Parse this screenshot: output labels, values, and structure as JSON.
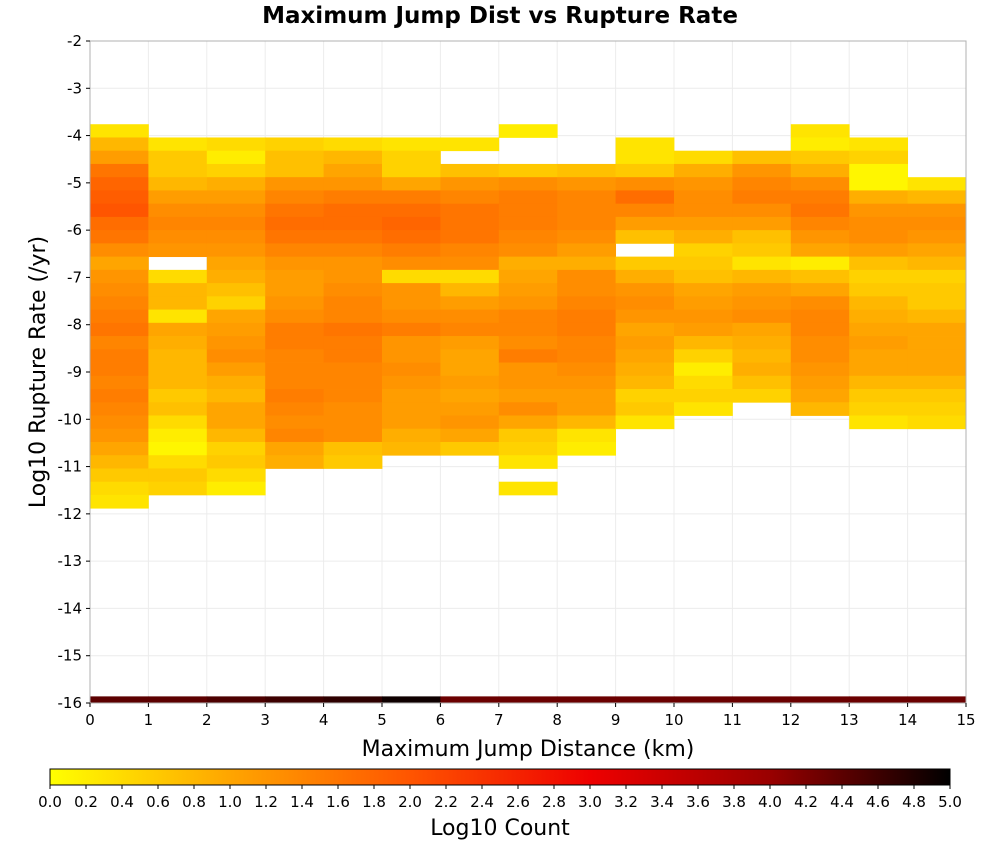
{
  "chart_data": {
    "type": "heatmap",
    "title": "Maximum Jump Dist vs Rupture Rate",
    "xlabel": "Maximum Jump Distance (km)",
    "ylabel": "Log10 Rupture Rate (/yr)",
    "colorbar_label": "Log10 Count",
    "xlim": [
      0,
      15
    ],
    "ylim": [
      -16,
      -2
    ],
    "x_ticks": [
      "0",
      "1",
      "2",
      "3",
      "4",
      "5",
      "6",
      "7",
      "8",
      "9",
      "10",
      "11",
      "12",
      "13",
      "14",
      "15"
    ],
    "y_ticks": [
      "-2",
      "-3",
      "-4",
      "-5",
      "-6",
      "-7",
      "-8",
      "-9",
      "-10",
      "-11",
      "-12",
      "-13",
      "-14",
      "-15",
      "-16"
    ],
    "color_range": [
      0,
      5
    ],
    "colorbar_ticks": [
      "0.0",
      "0.2",
      "0.4",
      "0.6",
      "0.8",
      "1.0",
      "1.2",
      "1.4",
      "1.6",
      "1.8",
      "2.0",
      "2.2",
      "2.4",
      "2.6",
      "2.8",
      "3.0",
      "3.2",
      "3.4",
      "3.6",
      "3.8",
      "4.0",
      "4.2",
      "4.4",
      "4.6",
      "4.8",
      "5.0"
    ],
    "colormap": [
      "#ffff00",
      "#ffa500",
      "#ff5500",
      "#ee0000",
      "#990000",
      "#000000"
    ],
    "grid": true,
    "bin_height": 0.28,
    "columns": [
      {
        "x0": 0,
        "x1": 1,
        "y_start": -3.76,
        "values": [
          0.3,
          0.8,
          1.1,
          1.6,
          1.8,
          1.9,
          2.0,
          1.7,
          1.6,
          1.3,
          1.0,
          1.2,
          1.3,
          1.4,
          1.5,
          1.6,
          1.4,
          1.5,
          1.5,
          1.4,
          1.5,
          1.4,
          1.3,
          1.2,
          1.0,
          0.8,
          0.6,
          0.4,
          0.3
        ],
        "extra": [
          {
            "y0": -16,
            "y1": -15.86,
            "v": 4.4
          }
        ]
      },
      {
        "x0": 1,
        "x1": 2,
        "y_start": -4.04,
        "values": [
          0.3,
          0.6,
          0.6,
          0.8,
          1.1,
          1.3,
          1.4,
          1.3,
          1.2,
          -1,
          0.4,
          0.8,
          0.8,
          0.3,
          1.0,
          0.9,
          0.8,
          0.8,
          0.8,
          0.6,
          0.7,
          0.4,
          0.2,
          0.1,
          0.4,
          0.6,
          0.5
        ],
        "extra": [
          {
            "y0": -16,
            "y1": -15.86,
            "v": 4.4
          }
        ]
      },
      {
        "x0": 2,
        "x1": 3,
        "y_start": -4.04,
        "values": [
          0.4,
          0.2,
          0.5,
          0.9,
          1.1,
          1.3,
          1.4,
          1.3,
          1.2,
          1.0,
          0.9,
          0.7,
          0.5,
          1.0,
          1.1,
          1.2,
          1.3,
          1.1,
          0.9,
          0.8,
          1.0,
          1.0,
          0.8,
          0.5,
          0.6,
          0.4,
          0.2
        ],
        "extra": [
          {
            "y0": -16,
            "y1": -15.86,
            "v": 4.5
          }
        ]
      },
      {
        "x0": 3,
        "x1": 4,
        "y_start": -4.04,
        "values": [
          0.5,
          0.7,
          0.7,
          1.2,
          1.4,
          1.6,
          1.7,
          1.6,
          1.4,
          1.2,
          1.1,
          1.1,
          1.2,
          1.3,
          1.5,
          1.5,
          1.4,
          1.4,
          1.4,
          1.5,
          1.4,
          1.3,
          1.4,
          1.0,
          0.9
        ],
        "extra": [
          {
            "y0": -16,
            "y1": -15.86,
            "v": 4.6
          }
        ]
      },
      {
        "x0": 4,
        "x1": 5,
        "y_start": -4.04,
        "values": [
          0.4,
          0.8,
          1.0,
          1.2,
          1.5,
          1.7,
          1.7,
          1.6,
          1.4,
          1.2,
          1.2,
          1.3,
          1.4,
          1.4,
          1.6,
          1.5,
          1.5,
          1.4,
          1.4,
          1.4,
          1.3,
          1.3,
          1.3,
          0.7,
          0.6
        ],
        "extra": [
          {
            "y0": -16,
            "y1": -15.86,
            "v": 4.7
          }
        ]
      },
      {
        "x0": 5,
        "x1": 6,
        "y_start": -4.04,
        "values": [
          0.3,
          0.5,
          0.5,
          1.0,
          1.5,
          1.7,
          1.8,
          1.7,
          1.5,
          1.3,
          0.4,
          1.2,
          1.2,
          1.3,
          1.5,
          1.2,
          1.2,
          1.3,
          1.2,
          1.1,
          1.1,
          1.1,
          0.9,
          0.8
        ],
        "extra": [
          {
            "y0": -16,
            "y1": -15.86,
            "v": 4.9
          }
        ]
      },
      {
        "x0": 6,
        "x1": 7,
        "y_start": -4.04,
        "values": [
          0.3,
          -1,
          0.7,
          1.2,
          1.4,
          1.6,
          1.6,
          1.6,
          1.4,
          1.3,
          0.4,
          0.8,
          1.1,
          1.3,
          1.4,
          1.1,
          1.0,
          1.0,
          1.1,
          1.0,
          1.1,
          1.2,
          1.0,
          0.6
        ],
        "extra": [
          {
            "y0": -16,
            "y1": -15.86,
            "v": 4.3
          }
        ]
      },
      {
        "x0": 7,
        "x1": 8,
        "y_start": -3.76,
        "values": [
          0.2,
          -1,
          -1,
          0.6,
          1.3,
          1.5,
          1.5,
          1.5,
          1.4,
          1.3,
          0.9,
          1.0,
          1.1,
          1.2,
          1.4,
          1.4,
          1.3,
          1.5,
          1.2,
          1.2,
          1.1,
          1.3,
          1.0,
          0.6,
          0.5,
          0.3,
          -1,
          0.3
        ],
        "extra": [
          {
            "y0": -16,
            "y1": -15.86,
            "v": 4.3
          }
        ]
      },
      {
        "x0": 8,
        "x1": 9,
        "y_start": -4.6,
        "values": [
          0.7,
          1.2,
          1.4,
          1.4,
          1.4,
          1.3,
          1.1,
          0.9,
          1.3,
          1.3,
          1.4,
          1.5,
          1.5,
          1.4,
          1.4,
          1.3,
          1.2,
          1.1,
          1.1,
          0.8,
          0.3,
          0.2
        ],
        "extra": [
          {
            "y0": -16,
            "y1": -15.86,
            "v": 4.3
          }
        ]
      },
      {
        "x0": 9,
        "x1": 10,
        "y_start": -4.04,
        "values": [
          0.3,
          0.3,
          0.6,
          1.3,
          1.7,
          1.4,
          1.1,
          0.7,
          -1,
          0.6,
          0.9,
          1.2,
          1.3,
          1.2,
          1.0,
          1.1,
          1.0,
          0.9,
          0.8,
          0.5,
          0.6,
          0.3
        ],
        "extra": [
          {
            "y0": -16,
            "y1": -15.86,
            "v": 4.3
          }
        ]
      },
      {
        "x0": 10,
        "x1": 11,
        "y_start": -4.32,
        "values": [
          0.4,
          0.9,
          1.2,
          1.3,
          1.3,
          1.1,
          0.9,
          0.5,
          0.6,
          0.7,
          1.0,
          1.1,
          1.2,
          1.1,
          0.8,
          0.5,
          0.2,
          0.4,
          0.5,
          0.3
        ],
        "extra": [
          {
            "y0": -16,
            "y1": -15.86,
            "v": 4.3
          }
        ]
      },
      {
        "x0": 11,
        "x1": 12,
        "y_start": -4.32,
        "values": [
          0.7,
          1.2,
          1.4,
          1.5,
          1.3,
          1.1,
          0.7,
          0.6,
          0.3,
          0.8,
          1.1,
          1.2,
          1.3,
          1.0,
          0.9,
          0.8,
          0.9,
          0.7,
          0.5
        ],
        "extra": [
          {
            "y0": -16,
            "y1": -15.86,
            "v": 4.3
          }
        ]
      },
      {
        "x0": 12,
        "x1": 13,
        "y_start": -3.76,
        "values": [
          0.3,
          0.2,
          0.6,
          0.9,
          1.3,
          1.5,
          1.6,
          1.4,
          1.2,
          1.0,
          0.2,
          0.7,
          1.0,
          1.3,
          1.4,
          1.4,
          1.3,
          1.3,
          1.2,
          1.1,
          1.0,
          0.8
        ],
        "extra": [
          {
            "y0": -16,
            "y1": -15.86,
            "v": 4.3
          }
        ]
      },
      {
        "x0": 13,
        "x1": 14,
        "y_start": -4.04,
        "values": [
          0.3,
          0.5,
          0.1,
          0.1,
          0.9,
          1.2,
          1.3,
          1.3,
          1.1,
          0.7,
          0.5,
          0.6,
          0.8,
          0.9,
          1.0,
          1.1,
          1.0,
          1.0,
          0.8,
          0.6,
          0.5,
          0.3
        ],
        "extra": [
          {
            "y0": -16,
            "y1": -15.86,
            "v": 4.3
          }
        ]
      },
      {
        "x0": 14,
        "x1": 15,
        "y_start": -4.88,
        "values": [
          0.3,
          0.8,
          1.2,
          1.3,
          1.2,
          1.0,
          0.8,
          0.5,
          0.6,
          0.6,
          0.8,
          1.0,
          1.0,
          1.0,
          1.0,
          0.8,
          0.6,
          0.5,
          0.4
        ],
        "extra": [
          {
            "y0": -16,
            "y1": -15.86,
            "v": 4.3
          }
        ]
      }
    ]
  }
}
